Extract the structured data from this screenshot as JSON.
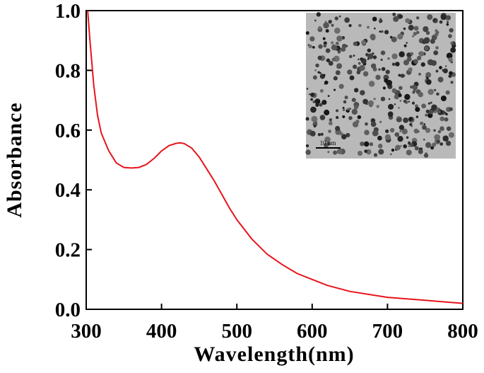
{
  "chart_data": {
    "type": "line",
    "x_label": "Wavelength(nm)",
    "y_label": "Absorbance",
    "xlim": [
      300,
      800
    ],
    "ylim": [
      0,
      1
    ],
    "xticks": [
      300,
      400,
      500,
      600,
      700,
      800
    ],
    "yticks": [
      {
        "value": 0,
        "label": "0.0"
      },
      0.2,
      0.4,
      0.6,
      0.8,
      {
        "value": 1,
        "label": "1.0"
      }
    ],
    "inset_scale_label": "10 nm",
    "series": [
      {
        "color": "#e8141c",
        "x": [
          302,
          305,
          310,
          315,
          320,
          330,
          340,
          350,
          360,
          370,
          380,
          390,
          400,
          410,
          420,
          425,
          430,
          440,
          450,
          460,
          470,
          480,
          490,
          500,
          520,
          540,
          560,
          580,
          600,
          620,
          650,
          700,
          750,
          800
        ],
        "values": [
          1.0,
          0.9,
          0.75,
          0.65,
          0.59,
          0.53,
          0.49,
          0.475,
          0.473,
          0.475,
          0.485,
          0.505,
          0.53,
          0.548,
          0.556,
          0.557,
          0.555,
          0.54,
          0.51,
          0.47,
          0.43,
          0.385,
          0.34,
          0.3,
          0.235,
          0.185,
          0.15,
          0.12,
          0.1,
          0.08,
          0.06,
          0.04,
          0.03,
          0.02
        ]
      }
    ]
  }
}
